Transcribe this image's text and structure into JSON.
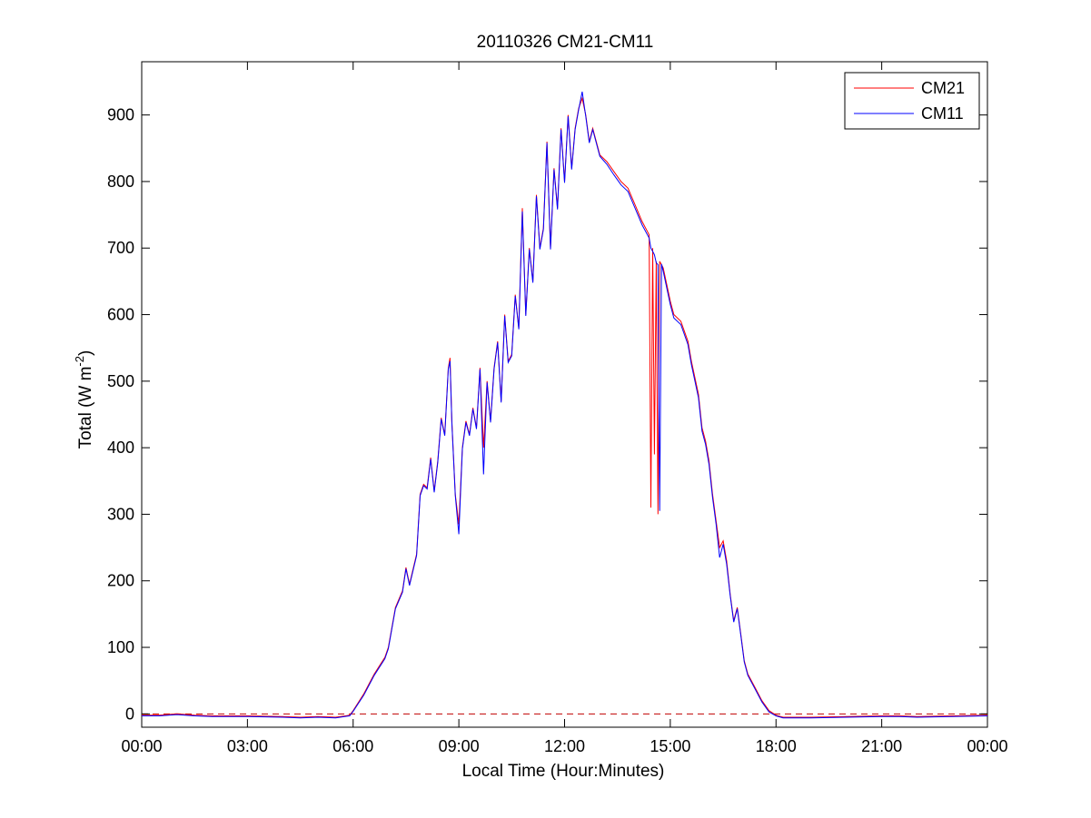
{
  "chart_data": {
    "type": "line",
    "title": "20110326 CM21-CM11",
    "xlabel": "Local Time (Hour:Minutes)",
    "ylabel": {
      "prefix": "Total (W m",
      "sup": "-2",
      "suffix": ")"
    },
    "xlim": [
      0,
      24
    ],
    "ylim": [
      -20,
      980
    ],
    "xticks": [
      0,
      3,
      6,
      9,
      12,
      15,
      18,
      21,
      24
    ],
    "xticklabels": [
      "00:00",
      "03:00",
      "06:00",
      "09:00",
      "12:00",
      "15:00",
      "18:00",
      "21:00",
      "00:00"
    ],
    "yticks": [
      0,
      100,
      200,
      300,
      400,
      500,
      600,
      700,
      800,
      900
    ],
    "yticklabels": [
      "0",
      "100",
      "200",
      "300",
      "400",
      "500",
      "600",
      "700",
      "800",
      "900"
    ],
    "grid": false,
    "legend_position": "top-right",
    "reference_line": {
      "y": 0,
      "style": "dashed",
      "color": "#c00000"
    },
    "x_unit": "hours",
    "series": [
      {
        "name": "CM21",
        "color": "#ff0000",
        "points": [
          [
            0.0,
            -2
          ],
          [
            0.5,
            -2
          ],
          [
            1.0,
            0
          ],
          [
            1.5,
            -2
          ],
          [
            2.0,
            -3
          ],
          [
            3.0,
            -3
          ],
          [
            4.0,
            -4
          ],
          [
            4.5,
            -5
          ],
          [
            5.0,
            -4
          ],
          [
            5.5,
            -5
          ],
          [
            5.9,
            -2
          ],
          [
            6.0,
            5
          ],
          [
            6.3,
            30
          ],
          [
            6.6,
            60
          ],
          [
            6.9,
            85
          ],
          [
            7.0,
            100
          ],
          [
            7.2,
            160
          ],
          [
            7.4,
            185
          ],
          [
            7.5,
            220
          ],
          [
            7.6,
            195
          ],
          [
            7.8,
            240
          ],
          [
            7.9,
            330
          ],
          [
            8.0,
            345
          ],
          [
            8.1,
            340
          ],
          [
            8.2,
            385
          ],
          [
            8.3,
            335
          ],
          [
            8.4,
            380
          ],
          [
            8.5,
            445
          ],
          [
            8.6,
            420
          ],
          [
            8.7,
            520
          ],
          [
            8.75,
            535
          ],
          [
            8.8,
            440
          ],
          [
            8.9,
            330
          ],
          [
            9.0,
            285
          ],
          [
            9.1,
            400
          ],
          [
            9.2,
            440
          ],
          [
            9.3,
            420
          ],
          [
            9.4,
            460
          ],
          [
            9.5,
            430
          ],
          [
            9.6,
            520
          ],
          [
            9.7,
            400
          ],
          [
            9.8,
            500
          ],
          [
            9.9,
            440
          ],
          [
            10.0,
            520
          ],
          [
            10.1,
            560
          ],
          [
            10.2,
            470
          ],
          [
            10.3,
            600
          ],
          [
            10.4,
            530
          ],
          [
            10.5,
            540
          ],
          [
            10.6,
            630
          ],
          [
            10.7,
            580
          ],
          [
            10.8,
            760
          ],
          [
            10.9,
            600
          ],
          [
            11.0,
            700
          ],
          [
            11.1,
            650
          ],
          [
            11.2,
            780
          ],
          [
            11.3,
            700
          ],
          [
            11.4,
            730
          ],
          [
            11.5,
            860
          ],
          [
            11.6,
            700
          ],
          [
            11.7,
            820
          ],
          [
            11.8,
            760
          ],
          [
            11.9,
            880
          ],
          [
            12.0,
            800
          ],
          [
            12.1,
            900
          ],
          [
            12.2,
            820
          ],
          [
            12.3,
            880
          ],
          [
            12.4,
            910
          ],
          [
            12.5,
            925
          ],
          [
            12.6,
            900
          ],
          [
            12.7,
            860
          ],
          [
            12.8,
            880
          ],
          [
            12.9,
            860
          ],
          [
            13.0,
            840
          ],
          [
            13.2,
            830
          ],
          [
            13.4,
            815
          ],
          [
            13.6,
            800
          ],
          [
            13.8,
            790
          ],
          [
            14.0,
            765
          ],
          [
            14.2,
            740
          ],
          [
            14.4,
            720
          ],
          [
            14.45,
            310
          ],
          [
            14.5,
            700
          ],
          [
            14.55,
            390
          ],
          [
            14.6,
            680
          ],
          [
            14.65,
            300
          ],
          [
            14.7,
            680
          ],
          [
            14.8,
            670
          ],
          [
            15.0,
            620
          ],
          [
            15.1,
            600
          ],
          [
            15.3,
            590
          ],
          [
            15.5,
            560
          ],
          [
            15.6,
            530
          ],
          [
            15.8,
            480
          ],
          [
            15.9,
            430
          ],
          [
            16.0,
            410
          ],
          [
            16.1,
            380
          ],
          [
            16.2,
            330
          ],
          [
            16.3,
            290
          ],
          [
            16.4,
            250
          ],
          [
            16.5,
            260
          ],
          [
            16.6,
            230
          ],
          [
            16.7,
            180
          ],
          [
            16.8,
            140
          ],
          [
            16.9,
            160
          ],
          [
            17.0,
            120
          ],
          [
            17.1,
            80
          ],
          [
            17.2,
            60
          ],
          [
            17.4,
            40
          ],
          [
            17.6,
            20
          ],
          [
            17.8,
            5
          ],
          [
            18.0,
            -2
          ],
          [
            18.2,
            -5
          ],
          [
            18.5,
            -5
          ],
          [
            19.0,
            -5
          ],
          [
            20.0,
            -4
          ],
          [
            21.0,
            -3
          ],
          [
            21.5,
            -3
          ],
          [
            22.0,
            -4
          ],
          [
            23.0,
            -3
          ],
          [
            24.0,
            -2
          ]
        ]
      },
      {
        "name": "CM11",
        "color": "#0000ff",
        "points": [
          [
            0.0,
            -3
          ],
          [
            0.5,
            -3
          ],
          [
            1.0,
            -1
          ],
          [
            1.5,
            -3
          ],
          [
            2.0,
            -4
          ],
          [
            3.0,
            -4
          ],
          [
            4.0,
            -5
          ],
          [
            4.5,
            -6
          ],
          [
            5.0,
            -5
          ],
          [
            5.5,
            -6
          ],
          [
            5.9,
            -3
          ],
          [
            6.0,
            4
          ],
          [
            6.3,
            28
          ],
          [
            6.6,
            58
          ],
          [
            6.9,
            83
          ],
          [
            7.0,
            98
          ],
          [
            7.2,
            158
          ],
          [
            7.4,
            183
          ],
          [
            7.5,
            218
          ],
          [
            7.6,
            193
          ],
          [
            7.8,
            238
          ],
          [
            7.9,
            328
          ],
          [
            8.0,
            343
          ],
          [
            8.1,
            338
          ],
          [
            8.2,
            383
          ],
          [
            8.3,
            333
          ],
          [
            8.4,
            378
          ],
          [
            8.5,
            443
          ],
          [
            8.6,
            418
          ],
          [
            8.7,
            518
          ],
          [
            8.75,
            530
          ],
          [
            8.8,
            438
          ],
          [
            8.9,
            328
          ],
          [
            9.0,
            270
          ],
          [
            9.1,
            398
          ],
          [
            9.2,
            438
          ],
          [
            9.3,
            418
          ],
          [
            9.4,
            458
          ],
          [
            9.5,
            428
          ],
          [
            9.6,
            518
          ],
          [
            9.7,
            360
          ],
          [
            9.8,
            498
          ],
          [
            9.9,
            438
          ],
          [
            10.0,
            518
          ],
          [
            10.1,
            558
          ],
          [
            10.2,
            468
          ],
          [
            10.3,
            598
          ],
          [
            10.4,
            528
          ],
          [
            10.5,
            538
          ],
          [
            10.6,
            628
          ],
          [
            10.7,
            578
          ],
          [
            10.8,
            755
          ],
          [
            10.9,
            598
          ],
          [
            11.0,
            698
          ],
          [
            11.1,
            648
          ],
          [
            11.2,
            778
          ],
          [
            11.3,
            698
          ],
          [
            11.4,
            728
          ],
          [
            11.5,
            858
          ],
          [
            11.6,
            698
          ],
          [
            11.7,
            818
          ],
          [
            11.8,
            758
          ],
          [
            11.9,
            878
          ],
          [
            12.0,
            798
          ],
          [
            12.1,
            898
          ],
          [
            12.2,
            818
          ],
          [
            12.3,
            878
          ],
          [
            12.4,
            908
          ],
          [
            12.5,
            935
          ],
          [
            12.6,
            898
          ],
          [
            12.7,
            858
          ],
          [
            12.8,
            878
          ],
          [
            12.9,
            858
          ],
          [
            13.0,
            838
          ],
          [
            13.2,
            826
          ],
          [
            13.4,
            810
          ],
          [
            13.6,
            795
          ],
          [
            13.8,
            785
          ],
          [
            14.0,
            760
          ],
          [
            14.2,
            735
          ],
          [
            14.4,
            715
          ],
          [
            14.45,
            700
          ],
          [
            14.5,
            695
          ],
          [
            14.55,
            690
          ],
          [
            14.6,
            678
          ],
          [
            14.65,
            675
          ],
          [
            14.7,
            305
          ],
          [
            14.75,
            676
          ],
          [
            14.8,
            665
          ],
          [
            15.0,
            615
          ],
          [
            15.1,
            595
          ],
          [
            15.3,
            585
          ],
          [
            15.5,
            555
          ],
          [
            15.6,
            525
          ],
          [
            15.8,
            475
          ],
          [
            15.9,
            425
          ],
          [
            16.0,
            405
          ],
          [
            16.1,
            375
          ],
          [
            16.2,
            325
          ],
          [
            16.3,
            285
          ],
          [
            16.4,
            235
          ],
          [
            16.5,
            255
          ],
          [
            16.6,
            225
          ],
          [
            16.7,
            178
          ],
          [
            16.8,
            138
          ],
          [
            16.9,
            158
          ],
          [
            17.0,
            118
          ],
          [
            17.1,
            78
          ],
          [
            17.2,
            58
          ],
          [
            17.4,
            38
          ],
          [
            17.6,
            18
          ],
          [
            17.8,
            3
          ],
          [
            18.0,
            -3
          ],
          [
            18.2,
            -6
          ],
          [
            18.5,
            -6
          ],
          [
            19.0,
            -6
          ],
          [
            20.0,
            -5
          ],
          [
            21.0,
            -4
          ],
          [
            21.5,
            -4
          ],
          [
            22.0,
            -5
          ],
          [
            23.0,
            -4
          ],
          [
            24.0,
            -3
          ]
        ]
      }
    ]
  }
}
